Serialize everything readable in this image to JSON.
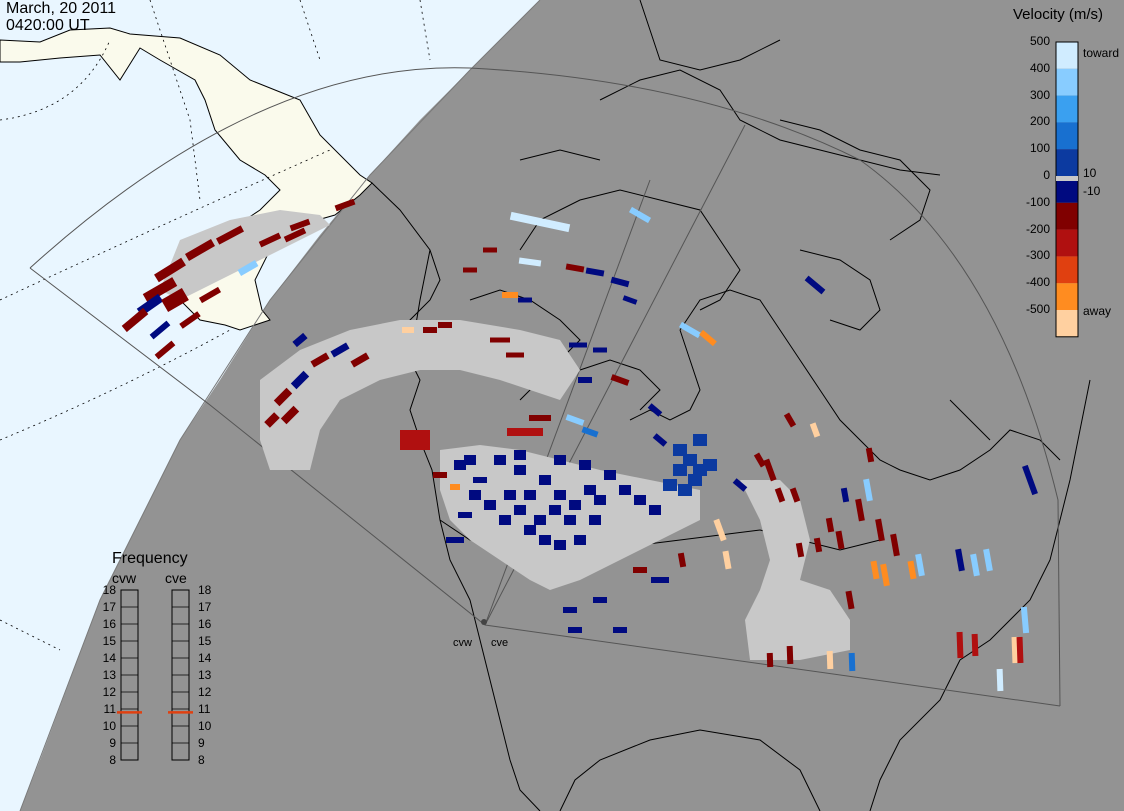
{
  "header": {
    "date": "March, 20 2011",
    "time": "0420:00 UT"
  },
  "colorbar": {
    "title": "Velocity (m/s)",
    "ticks": [
      "500",
      "400",
      "300",
      "200",
      "100",
      "0",
      "-100",
      "-200",
      "-300",
      "-400",
      "-500"
    ],
    "inner_ticks": [
      "10",
      "-10"
    ],
    "top_note": "toward",
    "bottom_note": "away",
    "colors": [
      "#d0ecff",
      "#88ccff",
      "#3aa0f0",
      "#1870d0",
      "#0c3aa0",
      "#000a80",
      "#800000",
      "#b01010",
      "#e04010",
      "#ff8c20",
      "#ffd0a0"
    ],
    "ground_scatter_color": "#c8c8c8"
  },
  "frequency": {
    "title": "Frequency",
    "radars": [
      "cvw",
      "cve"
    ],
    "scale": [
      "18",
      "17",
      "16",
      "15",
      "14",
      "13",
      "12",
      "11",
      "10",
      "9",
      "8"
    ],
    "cvw_mhz": 10.8,
    "cve_mhz": 10.8,
    "marker_color": "#e04010"
  },
  "radar_labels": [
    "cvw",
    "cve"
  ],
  "map": {
    "ocean_color": "#e9f6ff",
    "land_color": "#fafaec",
    "night_color": "#939393"
  }
}
